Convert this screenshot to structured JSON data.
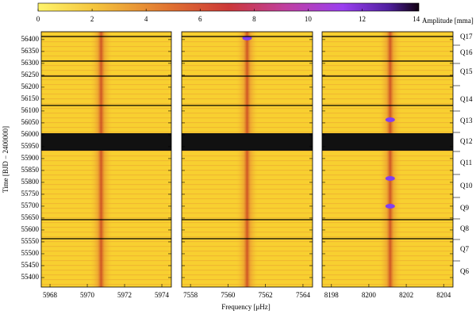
{
  "chart_data": {
    "type": "heatmap",
    "colorbar": {
      "label": "Amplitude [mma]",
      "lim": [
        0,
        14.1
      ],
      "ticks": [
        0,
        2,
        4,
        6,
        8,
        10,
        12,
        14
      ]
    },
    "xlabel": "Frequency [μHz]",
    "ylabel": "Time [BJD − 2400000]",
    "ylim": [
      55360,
      56433
    ],
    "yticks": [
      55400,
      55450,
      55500,
      55550,
      55600,
      55650,
      55700,
      55750,
      55800,
      55850,
      55900,
      55950,
      56000,
      56050,
      56100,
      56150,
      56200,
      56250,
      56300,
      56350,
      56400
    ],
    "panels": [
      {
        "xlim": [
          5967.53,
          5974.51
        ],
        "xticks": [
          5968,
          5970,
          5972,
          5974
        ]
      },
      {
        "xlim": [
          7557.53,
          7564.51
        ],
        "xticks": [
          7558,
          7560,
          7562,
          7564
        ]
      },
      {
        "xlim": [
          8197.5,
          8204.5
        ],
        "xticks": [
          8198,
          8200,
          8202,
          8204
        ]
      }
    ],
    "quarters": [
      "Q17",
      "Q16",
      "Q15",
      "Q14",
      "Q13",
      "Q12",
      "Q11",
      "Q10",
      "Q9",
      "Q8",
      "Q7",
      "Q6"
    ]
  }
}
